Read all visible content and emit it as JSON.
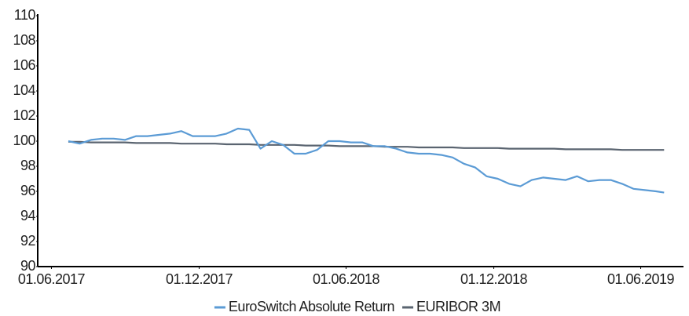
{
  "chart_data": {
    "type": "line",
    "x": [
      "2017-06-22",
      "2017-07-06",
      "2017-07-20",
      "2017-08-03",
      "2017-08-17",
      "2017-08-31",
      "2017-09-14",
      "2017-09-28",
      "2017-10-12",
      "2017-10-26",
      "2017-11-09",
      "2017-11-23",
      "2017-12-07",
      "2017-12-21",
      "2018-01-04",
      "2018-01-18",
      "2018-02-01",
      "2018-02-15",
      "2018-03-01",
      "2018-03-15",
      "2018-03-29",
      "2018-04-12",
      "2018-04-26",
      "2018-05-10",
      "2018-05-24",
      "2018-06-07",
      "2018-06-21",
      "2018-07-05",
      "2018-07-19",
      "2018-08-02",
      "2018-08-16",
      "2018-08-30",
      "2018-09-13",
      "2018-09-27",
      "2018-10-11",
      "2018-10-25",
      "2018-11-08",
      "2018-11-22",
      "2018-12-06",
      "2018-12-20",
      "2019-01-03",
      "2019-01-17",
      "2019-01-31",
      "2019-02-14",
      "2019-02-28",
      "2019-03-14",
      "2019-03-28",
      "2019-04-11",
      "2019-04-25",
      "2019-05-09",
      "2019-05-23",
      "2019-06-06",
      "2019-06-20",
      "2019-06-30"
    ],
    "series": [
      {
        "name": "EuroSwitch Absolute Return",
        "color": "#5b9bd5",
        "values": [
          100.0,
          99.8,
          100.1,
          100.2,
          100.2,
          100.1,
          100.4,
          100.4,
          100.5,
          100.6,
          100.8,
          100.4,
          100.4,
          100.4,
          100.6,
          101.0,
          100.9,
          99.4,
          100.0,
          99.7,
          99.0,
          99.0,
          99.3,
          100.0,
          100.0,
          99.9,
          99.9,
          99.6,
          99.6,
          99.4,
          99.1,
          99.0,
          99.0,
          98.9,
          98.7,
          98.2,
          97.9,
          97.2,
          97.0,
          96.6,
          96.4,
          96.9,
          97.1,
          97.0,
          96.9,
          97.2,
          96.8,
          96.9,
          96.9,
          96.6,
          96.2,
          96.1,
          96.0,
          95.9
        ]
      },
      {
        "name": "EURIBOR 3M",
        "color": "#5a6470",
        "values": [
          99.95,
          99.95,
          99.9,
          99.9,
          99.9,
          99.9,
          99.85,
          99.85,
          99.85,
          99.85,
          99.8,
          99.8,
          99.8,
          99.8,
          99.75,
          99.75,
          99.75,
          99.7,
          99.7,
          99.7,
          99.7,
          99.65,
          99.65,
          99.65,
          99.6,
          99.6,
          99.6,
          99.6,
          99.55,
          99.55,
          99.55,
          99.5,
          99.5,
          99.5,
          99.5,
          99.45,
          99.45,
          99.45,
          99.45,
          99.4,
          99.4,
          99.4,
          99.4,
          99.4,
          99.35,
          99.35,
          99.35,
          99.35,
          99.35,
          99.3,
          99.3,
          99.3,
          99.3,
          99.3
        ]
      }
    ],
    "xlim": [
      "2017-05-15",
      "2019-07-24"
    ],
    "xticks": [
      {
        "value": "2017-06-01",
        "label": "01.06.2017"
      },
      {
        "value": "2017-12-01",
        "label": "01.12.2017"
      },
      {
        "value": "2018-06-01",
        "label": "01.06.2018"
      },
      {
        "value": "2018-12-01",
        "label": "01.12.2018"
      },
      {
        "value": "2019-06-01",
        "label": "01.06.2019"
      }
    ],
    "ylim": [
      90,
      110
    ],
    "yticks": [
      90,
      92,
      94,
      96,
      98,
      100,
      102,
      104,
      106,
      108,
      110
    ],
    "grid": false,
    "legend": "bottom"
  }
}
